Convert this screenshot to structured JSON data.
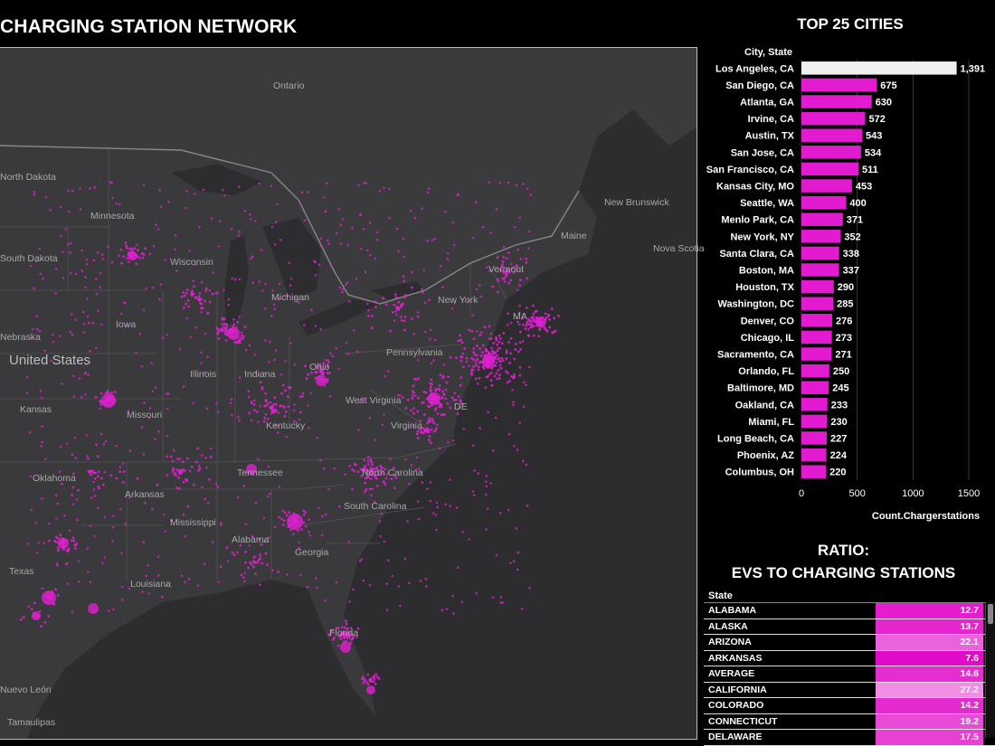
{
  "map": {
    "title": "CHARGING STATION NETWORK",
    "labels": [
      "Ontario",
      "North Dakota",
      "Minnesota",
      "South Dakota",
      "Wisconsin",
      "Michigan",
      "New York",
      "Vermont",
      "Maine",
      "New Brunswick",
      "Nova Scotia",
      "Nebraska",
      "Iowa",
      "United States",
      "Illinois",
      "Indiana",
      "Ohio",
      "Pennsylvania",
      "Kansas",
      "Missouri",
      "West Virginia",
      "Virginia",
      "Kentucky",
      "DE",
      "MA",
      "Oklahoma",
      "Tennessee",
      "North Carolina",
      "Arkansas",
      "Mississippi",
      "Alabama",
      "South Carolina",
      "Georgia",
      "Texas",
      "Louisiana",
      "Florida",
      "Nuevo León",
      "Tamaulipas"
    ]
  },
  "bar_chart": {
    "title": "TOP 25 CITIES",
    "column_header": "City, State",
    "x_axis_title": "Count.Chargerstations",
    "highlight_color": "#f0f0f0",
    "bar_color": "#e21ad0"
  },
  "chart_data": {
    "type": "bar",
    "orientation": "horizontal",
    "title": "TOP 25 CITIES",
    "xlabel": "Count.Chargerstations",
    "ylabel": "City, State",
    "xlim": [
      0,
      1600
    ],
    "xticks": [
      0,
      500,
      1000,
      1500
    ],
    "grid": true,
    "categories": [
      "Los Angeles, CA",
      "San Diego, CA",
      "Atlanta, GA",
      "Irvine, CA",
      "Austin, TX",
      "San Jose, CA",
      "San Francisco, CA",
      "Kansas City, MO",
      "Seattle, WA",
      "Menlo Park, CA",
      "New York, NY",
      "Santa Clara, CA",
      "Boston, MA",
      "Houston, TX",
      "Washington, DC",
      "Denver, CO",
      "Chicago, IL",
      "Sacramento, CA",
      "Orlando, FL",
      "Baltimore, MD",
      "Oakland, CA",
      "Miami, FL",
      "Long Beach, CA",
      "Phoenix, AZ",
      "Columbus, OH"
    ],
    "values": [
      1391,
      675,
      630,
      572,
      543,
      534,
      511,
      453,
      400,
      371,
      352,
      338,
      337,
      290,
      285,
      276,
      273,
      271,
      250,
      245,
      233,
      230,
      227,
      224,
      220
    ],
    "value_labels": [
      "1,391",
      "675",
      "630",
      "572",
      "543",
      "534",
      "511",
      "453",
      "400",
      "371",
      "352",
      "338",
      "337",
      "290",
      "285",
      "276",
      "273",
      "271",
      "250",
      "245",
      "233",
      "230",
      "227",
      "224",
      "220"
    ]
  },
  "ratio": {
    "title_line1": "RATIO:",
    "title_line2": "EVS TO CHARGING STATIONS",
    "column_header": "State",
    "rows": [
      {
        "state": "ALABAMA",
        "value": "12.7",
        "color": "#e61dcf"
      },
      {
        "state": "ALASKA",
        "value": "13.7",
        "color": "#e426cf"
      },
      {
        "state": "ARIZONA",
        "value": "22.1",
        "color": "#ea62dc"
      },
      {
        "state": "ARKANSAS",
        "value": "7.6",
        "color": "#e00bc8"
      },
      {
        "state": "AVERAGE",
        "value": "14.6",
        "color": "#e42ecf"
      },
      {
        "state": "CALIFORNIA",
        "value": "27.2",
        "color": "#ee8fe4"
      },
      {
        "state": "COLORADO",
        "value": "14.2",
        "color": "#e42bcf"
      },
      {
        "state": "CONNECTICUT",
        "value": "19.2",
        "color": "#e84bd6"
      },
      {
        "state": "DELAWARE",
        "value": "17.5",
        "color": "#e641d3"
      }
    ]
  }
}
